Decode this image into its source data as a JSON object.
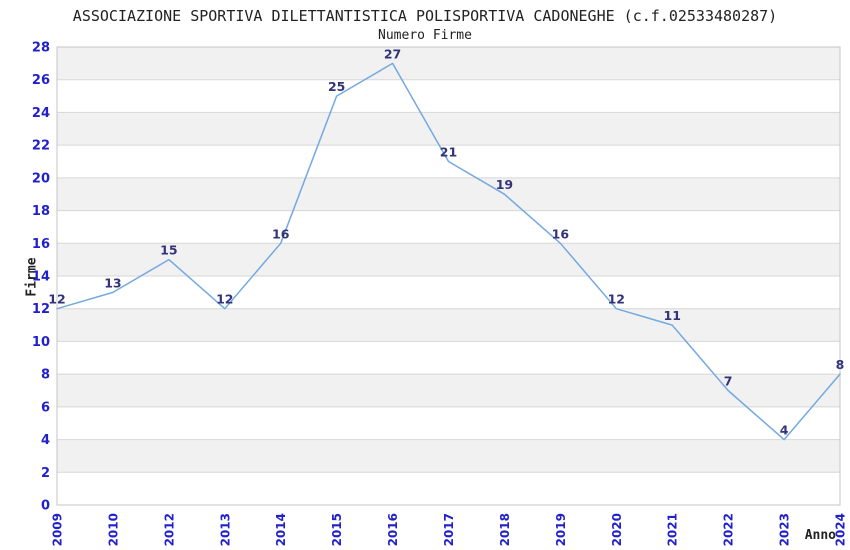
{
  "chart_data": {
    "type": "line",
    "title": "ASSOCIAZIONE SPORTIVA DILETTANTISTICA POLISPORTIVA CADONEGHE (c.f.02533480287)",
    "subtitle": "Numero Firme",
    "xlabel": "Anno",
    "ylabel": "Firme",
    "categories": [
      "2009",
      "2010",
      "2012",
      "2013",
      "2014",
      "2015",
      "2016",
      "2017",
      "2018",
      "2019",
      "2020",
      "2021",
      "2022",
      "2023",
      "2024"
    ],
    "values": [
      12,
      13,
      15,
      12,
      16,
      25,
      27,
      21,
      19,
      16,
      12,
      11,
      7,
      4,
      8
    ],
    "point_labels": [
      "12",
      "13",
      "15",
      "12",
      "16",
      "25",
      "27",
      "21",
      "19",
      "16",
      "12",
      "11",
      "7",
      "4",
      "8"
    ],
    "ylim": [
      0,
      28
    ],
    "ytick_step": 2,
    "grid": true,
    "legend_position": "none",
    "band_pattern": "alternating horizontal bands of 2 units, gray on 2-4, 6-8, 10-12, 14-16, 18-20, 22-24, 26-28",
    "colors": {
      "line": "#74a9e0",
      "tick_labels": "#2020cc",
      "point_labels": "#333377",
      "band_fill": "#f1f1f1",
      "grid_line": "#d7d7d7",
      "plot_border": "#c5c5c5",
      "text": "#222222",
      "background": "#ffffff"
    }
  }
}
